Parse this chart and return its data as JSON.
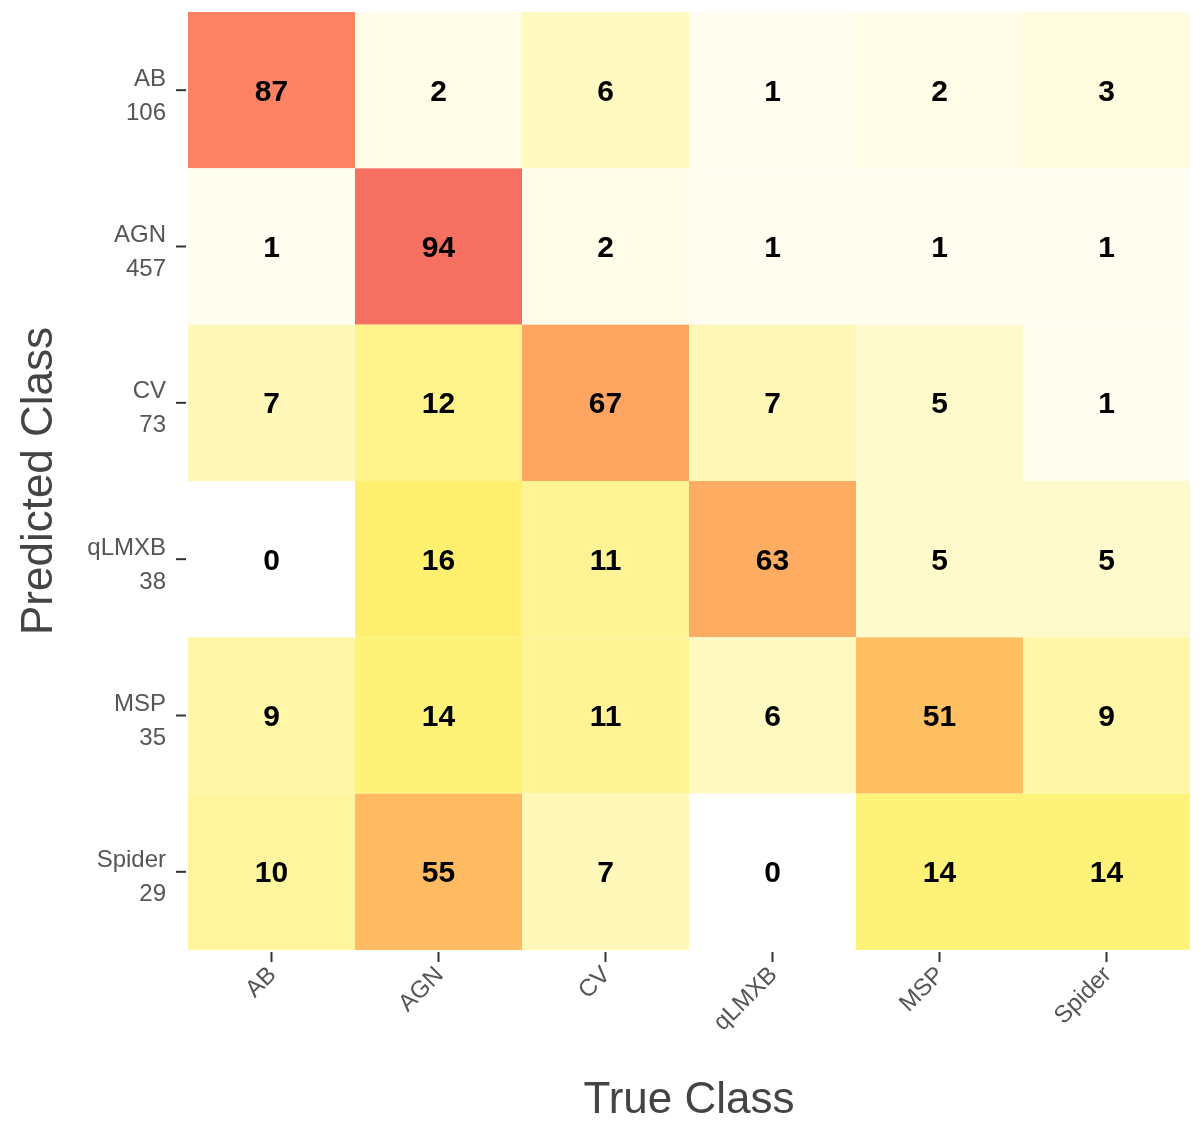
{
  "chart_data": {
    "type": "heatmap",
    "xlabel": "True Class",
    "ylabel": "Predicted Class",
    "categories": [
      "AB",
      "AGN",
      "CV",
      "qLMXB",
      "MSP",
      "Spider"
    ],
    "y_categories": [
      "AB\n106",
      "AGN\n457",
      "CV\n73",
      "qLMXB\n38",
      "MSP\n35",
      "Spider\n29"
    ],
    "cells": [
      [
        87,
        2,
        6,
        1,
        2,
        3
      ],
      [
        1,
        94,
        2,
        1,
        1,
        1
      ],
      [
        7,
        12,
        67,
        7,
        5,
        1
      ],
      [
        0,
        16,
        11,
        63,
        5,
        5
      ],
      [
        9,
        14,
        11,
        6,
        51,
        9
      ],
      [
        10,
        55,
        7,
        0,
        14,
        14
      ]
    ],
    "data_labels": true
  }
}
